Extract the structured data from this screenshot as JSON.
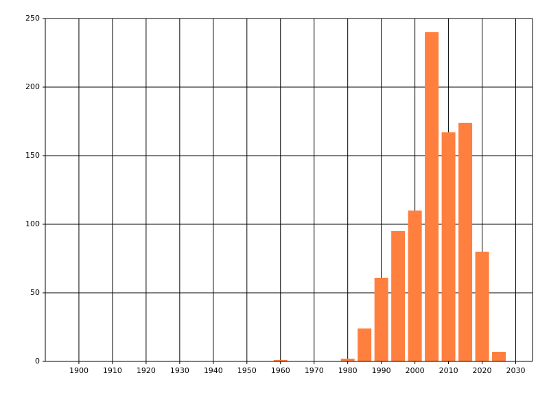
{
  "chart_data": {
    "type": "bar",
    "x": [
      1960,
      1980,
      1985,
      1990,
      1995,
      2000,
      2005,
      2010,
      2015,
      2020,
      2025
    ],
    "values": [
      1,
      2,
      24,
      61,
      95,
      110,
      240,
      167,
      174,
      80,
      7
    ],
    "color": "#ff7f3f",
    "xlim": [
      1890,
      2035
    ],
    "xticks": [
      1900,
      1910,
      1920,
      1930,
      1940,
      1950,
      1960,
      1970,
      1980,
      1990,
      2000,
      2010,
      2020,
      2030
    ],
    "ylim": [
      0,
      250
    ],
    "yticks": [
      0,
      50,
      100,
      150,
      200,
      250
    ],
    "grid": true
  }
}
